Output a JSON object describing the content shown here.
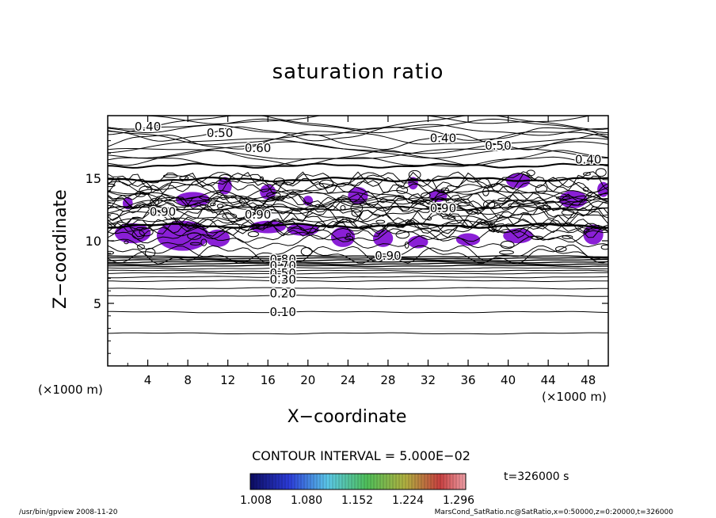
{
  "chart_data": {
    "type": "contour",
    "title": "saturation ratio",
    "xlabel": "X−coordinate",
    "ylabel": "Z−coordinate",
    "x_unit": "(×1000 m)",
    "y_unit": "(×1000 m)",
    "xlim": [
      0,
      50
    ],
    "ylim": [
      0,
      20
    ],
    "x_ticks": [
      4,
      8,
      12,
      16,
      20,
      24,
      28,
      32,
      36,
      40,
      44,
      48
    ],
    "x_tick_labels": [
      "4",
      "8",
      "12",
      "16",
      "20",
      "24",
      "28",
      "32",
      "36",
      "40",
      "44",
      "48"
    ],
    "y_ticks": [
      5,
      10,
      15
    ],
    "y_tick_labels": [
      "5",
      "10",
      "15"
    ],
    "contour_interval_text": "CONTOUR INTERVAL = 5.000E−02",
    "contour_labels": [
      {
        "text": "0.40",
        "x": 4,
        "z": 19.1
      },
      {
        "text": "0.50",
        "x": 11.2,
        "z": 18.6
      },
      {
        "text": "0.60",
        "x": 15,
        "z": 17.4
      },
      {
        "text": "0.40",
        "x": 33.5,
        "z": 18.2
      },
      {
        "text": "0.50",
        "x": 39,
        "z": 17.6
      },
      {
        "text": "0.40",
        "x": 48,
        "z": 16.5
      },
      {
        "text": "0.90",
        "x": 5.5,
        "z": 12.3
      },
      {
        "text": "0.90",
        "x": 15,
        "z": 12.1
      },
      {
        "text": "0.90",
        "x": 33.5,
        "z": 12.6
      },
      {
        "text": "0.90",
        "x": 28,
        "z": 8.8
      },
      {
        "text": "0.80",
        "x": 17.5,
        "z": 8.5
      },
      {
        "text": "0.70",
        "x": 17.5,
        "z": 8.0
      },
      {
        "text": "0.50",
        "x": 17.5,
        "z": 7.4
      },
      {
        "text": "0.30",
        "x": 17.5,
        "z": 6.9
      },
      {
        "text": "0.20",
        "x": 17.5,
        "z": 5.8
      },
      {
        "text": "0.10",
        "x": 17.5,
        "z": 4.3
      }
    ],
    "shaded_threshold": 1.0,
    "shaded_color": "#8a1fd6",
    "colorbar_tick_labels": [
      "1.008",
      "1.080",
      "1.152",
      "1.224",
      "1.296"
    ],
    "time_label": "t=326000  s"
  },
  "footer": {
    "left": "/usr/bin/gpview  2008-11-20",
    "right": "MarsCond_SatRatio.nc@SatRatio,x=0:50000,z=0:20000,t=326000"
  }
}
